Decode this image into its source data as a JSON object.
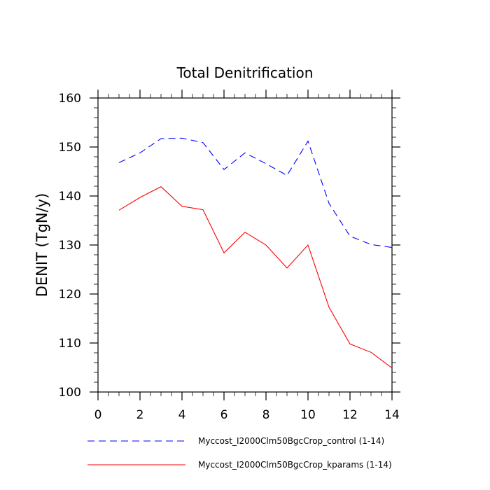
{
  "chart_data": {
    "type": "line",
    "title": "Total Denitrification",
    "xlabel": "",
    "ylabel": "DENIT  (TgN/y)",
    "xlim": [
      0,
      14
    ],
    "ylim": [
      100,
      160
    ],
    "x_ticks": [
      0,
      2,
      4,
      6,
      8,
      10,
      12,
      14
    ],
    "y_ticks": [
      100,
      110,
      120,
      130,
      140,
      150,
      160
    ],
    "x": [
      1,
      2,
      3,
      4,
      5,
      6,
      7,
      8,
      9,
      10,
      11,
      12,
      13,
      14
    ],
    "series": [
      {
        "name": "Myccost_I2000Clm50BgcCrop_control (1-14)",
        "color": "#0000ff",
        "dash": "dashed",
        "values": [
          146.8,
          148.8,
          151.7,
          151.8,
          150.9,
          145.4,
          148.8,
          146.6,
          144.2,
          151.2,
          138.5,
          131.8,
          130.1,
          129.5
        ]
      },
      {
        "name": "Myccost_I2000Clm50BgcCrop_kparams (1-14)",
        "color": "#ff0000",
        "dash": "solid",
        "values": [
          137.1,
          139.7,
          141.9,
          137.9,
          137.2,
          128.4,
          132.6,
          130.0,
          125.3,
          130.0,
          117.3,
          109.8,
          108.1,
          104.9
        ]
      }
    ]
  }
}
